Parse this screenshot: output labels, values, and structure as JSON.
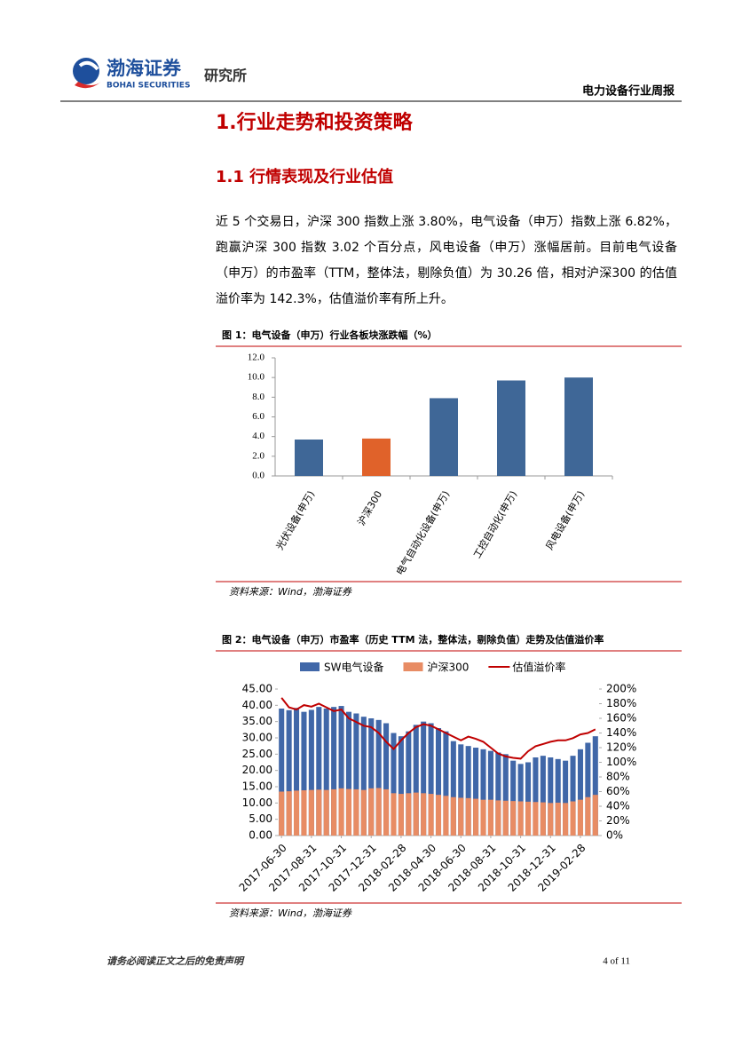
{
  "header": {
    "logo_cn": "渤海证券",
    "logo_en": "BOHAI SECURITIES",
    "institute": "研究所",
    "report_title": "电力设备行业周报"
  },
  "section": {
    "heading": "1.行业走势和投资策略",
    "subheading": "1.1 行情表现及行业估值",
    "paragraph": "近 5 个交易日，沪深 300 指数上涨 3.80%，电气设备（申万）指数上涨 6.82%，跑赢沪深 300 指数 3.02 个百分点，风电设备（申万）涨幅居前。目前电气设备（申万）的市盈率（TTM，整体法，剔除负值）为 30.26 倍，相对沪深300 的估值溢价率为 142.3%，估值溢价率有所上升。"
  },
  "chart_data": [
    {
      "type": "bar",
      "title": "图 1：电气设备（申万）行业各板块涨跌幅（%）",
      "source": "资料来源：Wind，渤海证券",
      "categories": [
        "光伏设备(申万)",
        "沪深300",
        "电气自动化设备(申万)",
        "工控自动化(申万)",
        "风电设备(申万)"
      ],
      "values": [
        3.7,
        3.8,
        7.9,
        9.7,
        10.0
      ],
      "colors": [
        "#3f6797",
        "#e0622a",
        "#3f6797",
        "#3f6797",
        "#3f6797"
      ],
      "ylim": [
        0,
        12
      ],
      "yticks": [
        {
          "value": 0,
          "label": "0.0"
        },
        {
          "value": 2,
          "label": "2.0"
        },
        {
          "value": 4,
          "label": "4.0"
        },
        {
          "value": 6,
          "label": "6.0"
        },
        {
          "value": 8,
          "label": "8.0"
        },
        {
          "value": 10,
          "label": "10.0"
        },
        {
          "value": 12,
          "label": "12.0"
        }
      ]
    },
    {
      "type": "combo",
      "title": "图 2：电气设备（申万）市盈率（历史 TTM 法，整体法，剔除负值）走势及估值溢价率",
      "source": "资料来源：Wind，渤海证券",
      "categories": [
        "2017-06-30",
        null,
        null,
        null,
        "2017-08-31",
        null,
        null,
        null,
        "2017-10-31",
        null,
        null,
        null,
        "2017-12-31",
        null,
        null,
        null,
        "2018-02-28",
        null,
        null,
        null,
        "2018-04-30",
        null,
        null,
        null,
        "2018-06-30",
        null,
        null,
        null,
        "2018-08-31",
        null,
        null,
        null,
        "2018-10-31",
        null,
        null,
        null,
        "2018-12-31",
        null,
        null,
        null,
        "2019-02-28",
        null,
        null
      ],
      "series": [
        {
          "name": "SW电气设备",
          "color": "#4067a8",
          "type": "bar",
          "values": [
            39.0,
            38.5,
            39.2,
            38.0,
            38.6,
            39.5,
            39.0,
            39.5,
            39.8,
            38.0,
            37.5,
            36.5,
            36.0,
            35.5,
            34.5,
            31.5,
            30.5,
            32.0,
            34.0,
            35.0,
            34.5,
            33.0,
            32.0,
            29.0,
            28.0,
            27.5,
            27.0,
            26.5,
            26.0,
            25.5,
            25.0,
            23.0,
            22.0,
            22.5,
            24.0,
            24.5,
            24.0,
            23.5,
            23.0,
            24.5,
            26.5,
            28.5,
            30.5
          ]
        },
        {
          "name": "沪深300",
          "color": "#e88c64",
          "type": "bar",
          "values": [
            13.5,
            13.6,
            13.8,
            13.9,
            14.0,
            14.1,
            14.0,
            14.2,
            14.5,
            14.3,
            14.2,
            14.0,
            14.5,
            14.6,
            14.2,
            13.0,
            12.8,
            13.0,
            13.2,
            13.0,
            12.8,
            12.5,
            12.2,
            11.8,
            11.6,
            11.5,
            11.3,
            11.0,
            11.0,
            10.8,
            10.7,
            10.6,
            10.5,
            10.4,
            10.3,
            10.2,
            10.0,
            10.1,
            10.0,
            10.5,
            11.0,
            11.8,
            12.5
          ]
        },
        {
          "name": "估值溢价率",
          "color": "#c00000",
          "type": "line",
          "axis": "y2",
          "values": [
            188,
            175,
            172,
            178,
            176,
            180,
            175,
            170,
            172,
            160,
            155,
            150,
            148,
            140,
            128,
            118,
            130,
            140,
            148,
            152,
            150,
            145,
            140,
            135,
            130,
            135,
            132,
            128,
            120,
            112,
            108,
            106,
            105,
            115,
            122,
            125,
            128,
            130,
            130,
            133,
            138,
            140,
            145
          ]
        }
      ],
      "ylim": [
        0,
        45
      ],
      "yticks": [
        {
          "value": 0,
          "label": "0.00"
        },
        {
          "value": 5,
          "label": "5.00"
        },
        {
          "value": 10,
          "label": "10.00"
        },
        {
          "value": 15,
          "label": "15.00"
        },
        {
          "value": 20,
          "label": "20.00"
        },
        {
          "value": 25,
          "label": "25.00"
        },
        {
          "value": 30,
          "label": "30.00"
        },
        {
          "value": 35,
          "label": "35.00"
        },
        {
          "value": 40,
          "label": "40.00"
        },
        {
          "value": 45,
          "label": "45.00"
        }
      ],
      "y2lim": [
        0,
        200
      ],
      "y2ticks": [
        {
          "value": 0,
          "label": "0%"
        },
        {
          "value": 20,
          "label": "20%"
        },
        {
          "value": 40,
          "label": "40%"
        },
        {
          "value": 60,
          "label": "60%"
        },
        {
          "value": 80,
          "label": "80%"
        },
        {
          "value": 100,
          "label": "100%"
        },
        {
          "value": 120,
          "label": "120%"
        },
        {
          "value": 140,
          "label": "140%"
        },
        {
          "value": 160,
          "label": "160%"
        },
        {
          "value": 180,
          "label": "180%"
        },
        {
          "value": 200,
          "label": "200%"
        }
      ]
    }
  ],
  "footer": {
    "disclaimer": "请务必阅读正文之后的免责声明",
    "page": "4 of 11"
  }
}
